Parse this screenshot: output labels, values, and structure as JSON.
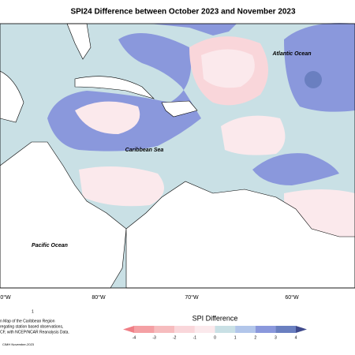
{
  "title": "SPI24 Difference between October 2023 and November 2023",
  "map_labels": [
    "Atlantic Ocean",
    "Caribbean Sea",
    "Pacific Ocean"
  ],
  "longitude_labels": [
    "0°W",
    "80°W",
    "70°W",
    "60°W"
  ],
  "notes": [
    "1",
    "n Map of the Caribbean Region",
    "regating station based observations,",
    "CF, with NCEP/NCAR Reanalysis Data.",
    "CIMH November-2023"
  ],
  "legend": {
    "title": "SPI Difference",
    "ticks": [
      -4,
      -3,
      -2,
      -1,
      0,
      1,
      2,
      3,
      4
    ],
    "colors": [
      "#f07f86",
      "#f4a0a4",
      "#f6bcbe",
      "#f9d6da",
      "#fbe9ec",
      "#c9e0e5",
      "#b2c6ea",
      "#8a98dc",
      "#6a7fc0",
      "#3f4a8c"
    ]
  }
}
